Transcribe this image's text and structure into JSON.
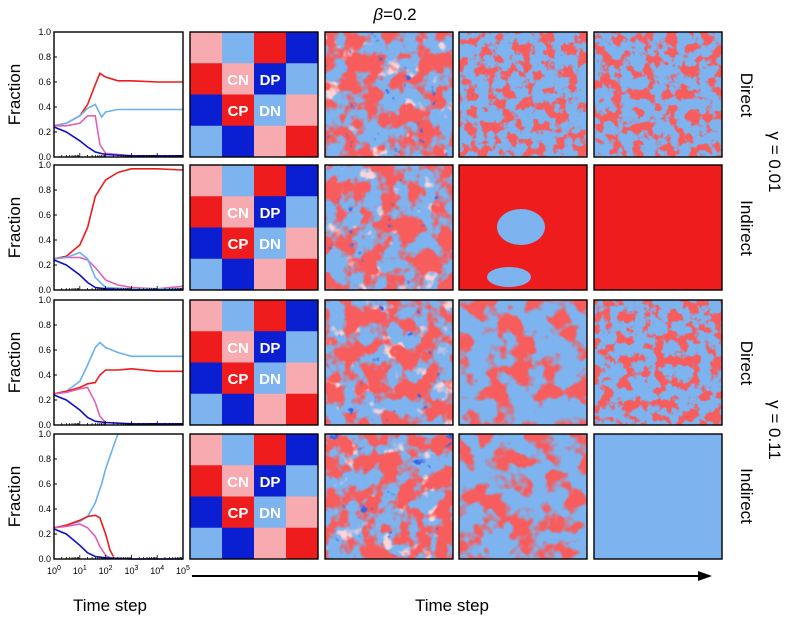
{
  "title": {
    "symbol": "β",
    "text": "=0.2"
  },
  "xlabel_left": "Time step",
  "xlabel_right": "Time step",
  "ylabel": "Fraction",
  "gamma_labels": [
    "γ = 0.01",
    "γ = 0.11"
  ],
  "row_labels": [
    "Direct",
    "Indirect",
    "Direct",
    "Indirect"
  ],
  "strategies": {
    "CN": {
      "label": "CN",
      "color": "#f7aab0"
    },
    "DP": {
      "label": "DP",
      "color": "#0a1fd2"
    },
    "CP": {
      "label": "CP",
      "color": "#ee1c1c"
    },
    "DN": {
      "label": "DN",
      "color": "#7db3ee"
    }
  },
  "y_ticks": [
    "0.0",
    "0.2",
    "0.4",
    "0.6",
    "0.8",
    "1.0"
  ],
  "x_ticks": [
    "10^0",
    "10^1",
    "10^2",
    "10^3",
    "10^4",
    "10^5"
  ],
  "chart_data": [
    {
      "type": "line",
      "row": "Direct, γ = 0.01",
      "xlabel": "Time step",
      "ylabel": "Fraction",
      "xscale": "log",
      "xlim": [
        1,
        100000
      ],
      "ylim": [
        0,
        1
      ],
      "series": [
        {
          "strategy": "CP",
          "color": "#ee1c1c",
          "x": [
            1,
            3,
            10,
            20,
            40,
            60,
            100,
            300,
            1000,
            10000,
            100000
          ],
          "y": [
            0.25,
            0.27,
            0.33,
            0.42,
            0.58,
            0.67,
            0.64,
            0.61,
            0.61,
            0.6,
            0.6
          ]
        },
        {
          "strategy": "DN",
          "color": "#6bb0f0",
          "x": [
            1,
            3,
            10,
            20,
            40,
            70,
            100,
            300,
            1000,
            10000,
            100000
          ],
          "y": [
            0.25,
            0.27,
            0.33,
            0.39,
            0.42,
            0.32,
            0.36,
            0.38,
            0.38,
            0.38,
            0.38
          ]
        },
        {
          "strategy": "CN",
          "color": "#e060b8",
          "x": [
            1,
            3,
            10,
            20,
            40,
            60,
            100,
            300,
            1000,
            100000
          ],
          "y": [
            0.25,
            0.25,
            0.27,
            0.33,
            0.33,
            0.1,
            0.03,
            0.02,
            0.01,
            0.01
          ]
        },
        {
          "strategy": "DP",
          "color": "#1010c8",
          "x": [
            1,
            3,
            10,
            20,
            40,
            100,
            1000,
            100000
          ],
          "y": [
            0.24,
            0.2,
            0.13,
            0.08,
            0.04,
            0.02,
            0.01,
            0.01
          ]
        }
      ]
    },
    {
      "type": "line",
      "row": "Indirect, γ = 0.01",
      "xlabel": "Time step",
      "ylabel": "Fraction",
      "xscale": "log",
      "xlim": [
        1,
        100000
      ],
      "ylim": [
        0,
        1
      ],
      "series": [
        {
          "strategy": "CP",
          "color": "#ee1c1c",
          "x": [
            1,
            3,
            10,
            20,
            40,
            100,
            300,
            1000,
            10000,
            100000
          ],
          "y": [
            0.25,
            0.27,
            0.36,
            0.5,
            0.75,
            0.88,
            0.94,
            0.97,
            0.97,
            0.96
          ]
        },
        {
          "strategy": "CN",
          "color": "#e060b8",
          "x": [
            1,
            3,
            10,
            20,
            40,
            100,
            300,
            1000,
            10000,
            100000
          ],
          "y": [
            0.25,
            0.26,
            0.26,
            0.24,
            0.18,
            0.08,
            0.04,
            0.02,
            0.01,
            0.03
          ]
        },
        {
          "strategy": "DN",
          "color": "#6bb0f0",
          "x": [
            1,
            3,
            10,
            20,
            40,
            100,
            1000,
            100000
          ],
          "y": [
            0.25,
            0.26,
            0.3,
            0.25,
            0.1,
            0.02,
            0.01,
            0.01
          ]
        },
        {
          "strategy": "DP",
          "color": "#1010c8",
          "x": [
            1,
            3,
            10,
            20,
            40,
            100,
            1000,
            100000
          ],
          "y": [
            0.24,
            0.2,
            0.12,
            0.06,
            0.02,
            0.01,
            0.0,
            0.0
          ]
        }
      ]
    },
    {
      "type": "line",
      "row": "Direct, γ = 0.11",
      "xlabel": "Time step",
      "ylabel": "Fraction",
      "xscale": "log",
      "xlim": [
        1,
        100000
      ],
      "ylim": [
        0,
        1
      ],
      "series": [
        {
          "strategy": "DN",
          "color": "#6bb0f0",
          "x": [
            1,
            3,
            10,
            20,
            40,
            60,
            100,
            300,
            1000,
            10000,
            100000
          ],
          "y": [
            0.25,
            0.27,
            0.35,
            0.48,
            0.62,
            0.66,
            0.62,
            0.58,
            0.55,
            0.55,
            0.55
          ]
        },
        {
          "strategy": "CP",
          "color": "#ee1c1c",
          "x": [
            1,
            3,
            10,
            20,
            40,
            60,
            100,
            300,
            1000,
            10000,
            100000
          ],
          "y": [
            0.25,
            0.27,
            0.3,
            0.33,
            0.34,
            0.4,
            0.44,
            0.44,
            0.45,
            0.43,
            0.43
          ]
        },
        {
          "strategy": "CN",
          "color": "#e060b8",
          "x": [
            1,
            3,
            10,
            20,
            40,
            60,
            100,
            1000,
            100000
          ],
          "y": [
            0.25,
            0.26,
            0.29,
            0.3,
            0.18,
            0.07,
            0.02,
            0.01,
            0.01
          ]
        },
        {
          "strategy": "DP",
          "color": "#1010c8",
          "x": [
            1,
            3,
            10,
            20,
            40,
            100,
            1000,
            100000
          ],
          "y": [
            0.24,
            0.2,
            0.12,
            0.06,
            0.03,
            0.02,
            0.01,
            0.01
          ]
        }
      ]
    },
    {
      "type": "line",
      "row": "Indirect, γ = 0.11",
      "xlabel": "Time step",
      "ylabel": "Fraction",
      "xscale": "log",
      "xlim": [
        1,
        100000
      ],
      "ylim": [
        0,
        1
      ],
      "series": [
        {
          "strategy": "DN",
          "color": "#6bb0f0",
          "x": [
            1,
            3,
            10,
            20,
            40,
            70,
            100,
            200,
            300
          ],
          "y": [
            0.25,
            0.27,
            0.3,
            0.34,
            0.45,
            0.6,
            0.72,
            0.9,
            1.0
          ]
        },
        {
          "strategy": "CP",
          "color": "#ee1c1c",
          "x": [
            1,
            3,
            10,
            20,
            40,
            60,
            100,
            150,
            200
          ],
          "y": [
            0.25,
            0.27,
            0.31,
            0.34,
            0.35,
            0.33,
            0.2,
            0.07,
            0.02
          ]
        },
        {
          "strategy": "CN",
          "color": "#e060b8",
          "x": [
            1,
            3,
            10,
            20,
            40,
            60,
            100,
            150
          ],
          "y": [
            0.25,
            0.26,
            0.28,
            0.25,
            0.18,
            0.1,
            0.03,
            0.01
          ]
        },
        {
          "strategy": "DP",
          "color": "#1010c8",
          "x": [
            1,
            3,
            10,
            20,
            40,
            100,
            1000,
            100000
          ],
          "y": [
            0.24,
            0.2,
            0.11,
            0.05,
            0.02,
            0.01,
            0.0,
            0.0
          ]
        }
      ]
    }
  ],
  "snapshots": {
    "initial_grid": [
      [
        "CN",
        "DN",
        "CP",
        "DP"
      ],
      [
        "CP",
        "CN",
        "DP",
        "DN"
      ],
      [
        "DP",
        "CP",
        "DN",
        "CN"
      ],
      [
        "DN",
        "DP",
        "CN",
        "CP"
      ]
    ],
    "final_states": [
      "CP patches in DN",
      "CP uniform",
      "CP patches in DN",
      "DN uniform"
    ]
  }
}
